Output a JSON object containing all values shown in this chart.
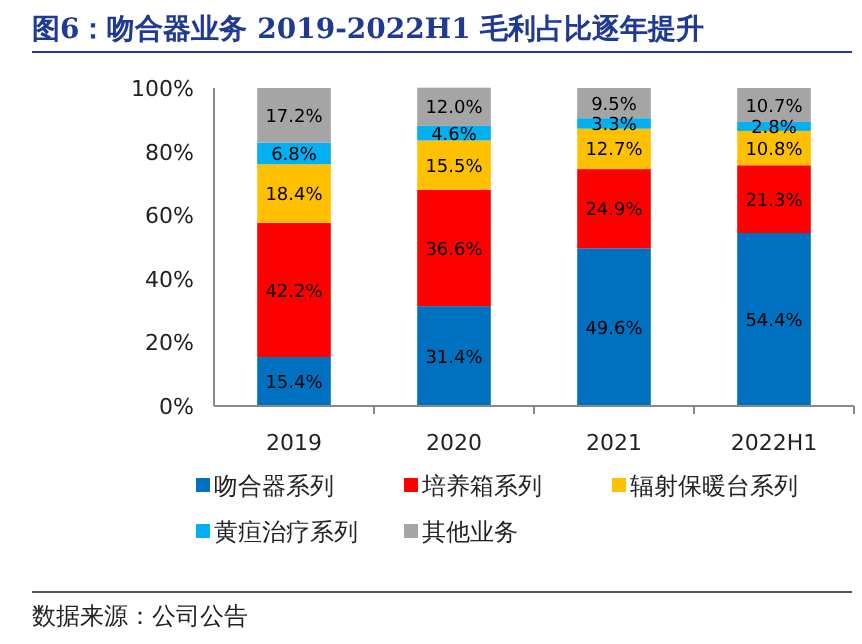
{
  "chart_data": {
    "type": "bar",
    "title": "图6：吻合器业务 2019-2022H1 毛利占比逐年提升",
    "stacked": true,
    "categories": [
      "2019",
      "2020",
      "2021",
      "2022H1"
    ],
    "series": [
      {
        "name": "吻合器系列",
        "color": "#0070c0",
        "values": [
          15.4,
          31.4,
          49.6,
          54.4
        ],
        "value_labels": [
          "15.4%",
          "31.4%",
          "49.6%",
          "54.4%"
        ]
      },
      {
        "name": "培养箱系列",
        "color": "#ff0000",
        "values": [
          42.2,
          36.6,
          24.9,
          21.3
        ],
        "value_labels": [
          "42.2%",
          "36.6%",
          "24.9%",
          "21.3%"
        ]
      },
      {
        "name": "辐射保暖台系列",
        "color": "#ffc000",
        "values": [
          18.4,
          15.5,
          12.7,
          10.8
        ],
        "value_labels": [
          "18.4%",
          "15.5%",
          "12.7%",
          "10.8%"
        ]
      },
      {
        "name": "黄疸治疗系列",
        "color": "#00b0f0",
        "values": [
          6.8,
          4.6,
          3.3,
          2.8
        ],
        "value_labels": [
          "6.8%",
          "4.6%",
          "3.3%",
          "2.8%"
        ]
      },
      {
        "name": "其他业务",
        "color": "#a5a5a5",
        "values": [
          17.2,
          12.0,
          9.5,
          10.7
        ],
        "value_labels": [
          "17.2%",
          "12.0%",
          "9.5%",
          "10.7%"
        ]
      }
    ],
    "ylim": [
      0,
      100
    ],
    "yticks": [
      {
        "value": 0,
        "label": "0%"
      },
      {
        "value": 20,
        "label": "20%"
      },
      {
        "value": 40,
        "label": "40%"
      },
      {
        "value": 60,
        "label": "60%"
      },
      {
        "value": 80,
        "label": "80%"
      },
      {
        "value": 100,
        "label": "100%"
      }
    ],
    "legend": "bottom",
    "annotations": [
      "数据来源：公司公告"
    ]
  }
}
